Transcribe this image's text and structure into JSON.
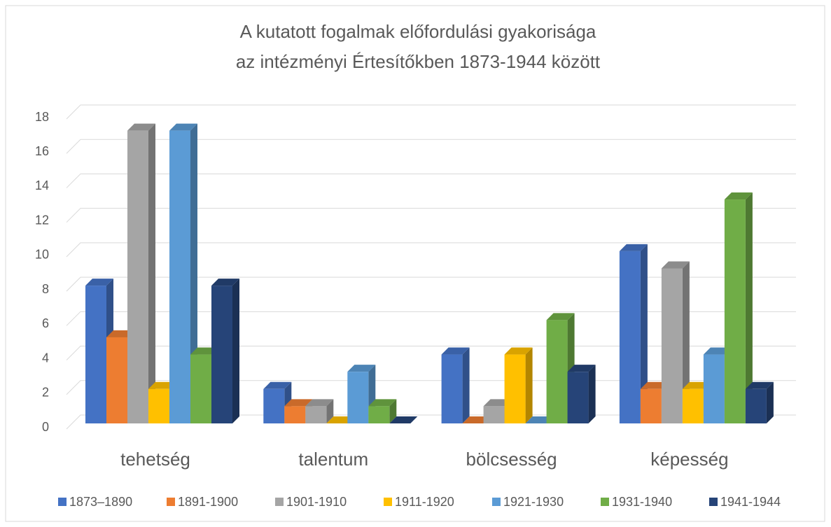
{
  "chart_data": {
    "type": "bar",
    "title": [
      "A kutatott fogalmak előfordulási gyakorisága",
      "az intézményi Értesítőkben 1873-1944 között"
    ],
    "categories": [
      "tehetség",
      "talentum",
      "bölcsesség",
      "képesség"
    ],
    "series": [
      {
        "name": "1873–1890",
        "color": "#4472c4",
        "values": [
          8,
          2,
          4,
          10
        ]
      },
      {
        "name": "1891-1900",
        "color": "#ed7d31",
        "values": [
          5,
          1,
          0,
          2
        ]
      },
      {
        "name": "1901-1910",
        "color": "#a5a5a5",
        "values": [
          17,
          1,
          1,
          9
        ]
      },
      {
        "name": "1911-1920",
        "color": "#ffc000",
        "values": [
          2,
          0,
          4,
          2
        ]
      },
      {
        "name": "1921-1930",
        "color": "#5b9bd5",
        "values": [
          17,
          3,
          0,
          4
        ]
      },
      {
        "name": "1931-1940",
        "color": "#70ad47",
        "values": [
          4,
          1,
          6,
          13
        ]
      },
      {
        "name": "1941-1944",
        "color": "#264478",
        "values": [
          8,
          0,
          3,
          2
        ]
      }
    ],
    "ylim": [
      0,
      18
    ],
    "yticks": [
      0,
      2,
      4,
      6,
      8,
      10,
      12,
      14,
      16,
      18
    ],
    "grid": true,
    "legend": "bottom"
  }
}
